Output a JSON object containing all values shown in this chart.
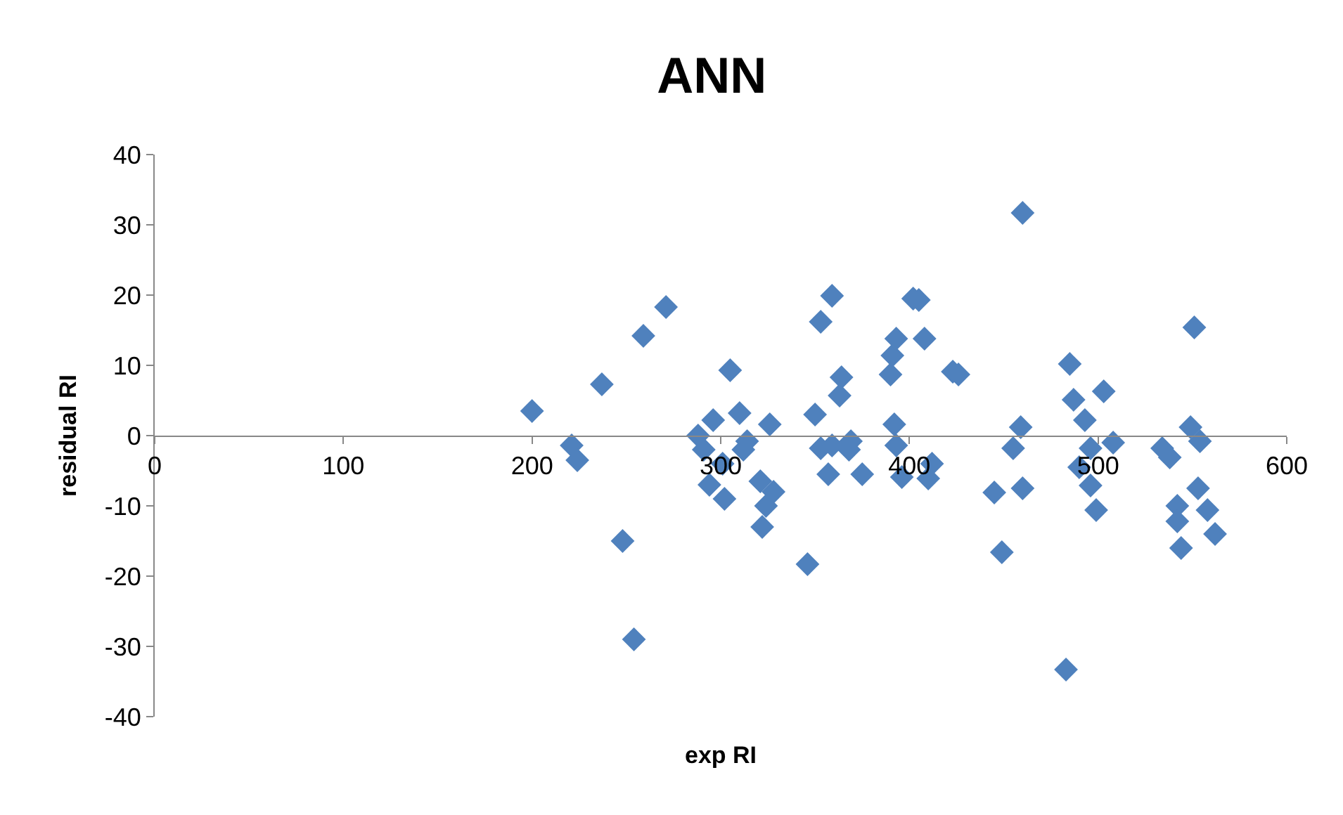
{
  "chart_data": {
    "type": "scatter",
    "title": "ANN",
    "xlabel": "exp RI",
    "ylabel": "residual RI",
    "x": [
      200,
      221,
      224,
      237,
      248,
      254,
      259,
      271,
      288,
      291,
      296,
      301,
      294,
      302,
      305,
      310,
      314,
      312,
      326,
      321,
      328,
      324,
      322,
      346,
      350,
      353,
      359,
      353,
      359,
      357,
      364,
      363,
      369,
      368,
      375,
      390,
      391,
      393,
      392,
      393,
      396,
      402,
      405,
      408,
      423,
      426,
      412,
      410,
      445,
      449,
      459,
      455,
      460,
      460,
      485,
      487,
      493,
      496,
      490,
      496,
      499,
      503,
      508,
      483,
      534,
      538,
      549,
      554,
      551,
      553,
      558,
      542,
      542,
      544,
      562
    ],
    "values": [
      3.5,
      -1.4,
      -3.5,
      7.3,
      -15,
      -29,
      14.2,
      18.3,
      0,
      -2,
      2.2,
      -4,
      -7,
      -9,
      9.3,
      3.2,
      -0.8,
      -2,
      1.6,
      -6.5,
      -8,
      -10,
      -13,
      -18.3,
      3,
      16.2,
      19.9,
      -1.8,
      -1.4,
      -5.5,
      8.3,
      5.7,
      -0.8,
      -2,
      -5.5,
      8.7,
      11.4,
      13.8,
      1.6,
      -1.4,
      -5.9,
      19.5,
      19.3,
      13.8,
      9.1,
      8.7,
      -4,
      -6.1,
      -8.1,
      -16.6,
      1.2,
      -1.8,
      -7.5,
      31.7,
      10.2,
      5.1,
      2.2,
      -1.8,
      -4.5,
      -7.1,
      -10.6,
      6.3,
      -1,
      -33.3,
      -1.8,
      -3.1,
      1.2,
      -0.8,
      15.4,
      -7.5,
      -10.6,
      -10,
      -12.2,
      -16,
      -14
    ],
    "color": "#4f81bd",
    "marker": "diamond",
    "xlim": [
      0,
      600
    ],
    "xticks": [
      0,
      100,
      200,
      300,
      400,
      500,
      600
    ],
    "ylim": [
      -40,
      40
    ],
    "yticks": [
      -40,
      -30,
      -20,
      -10,
      0,
      10,
      20,
      30,
      40
    ]
  }
}
